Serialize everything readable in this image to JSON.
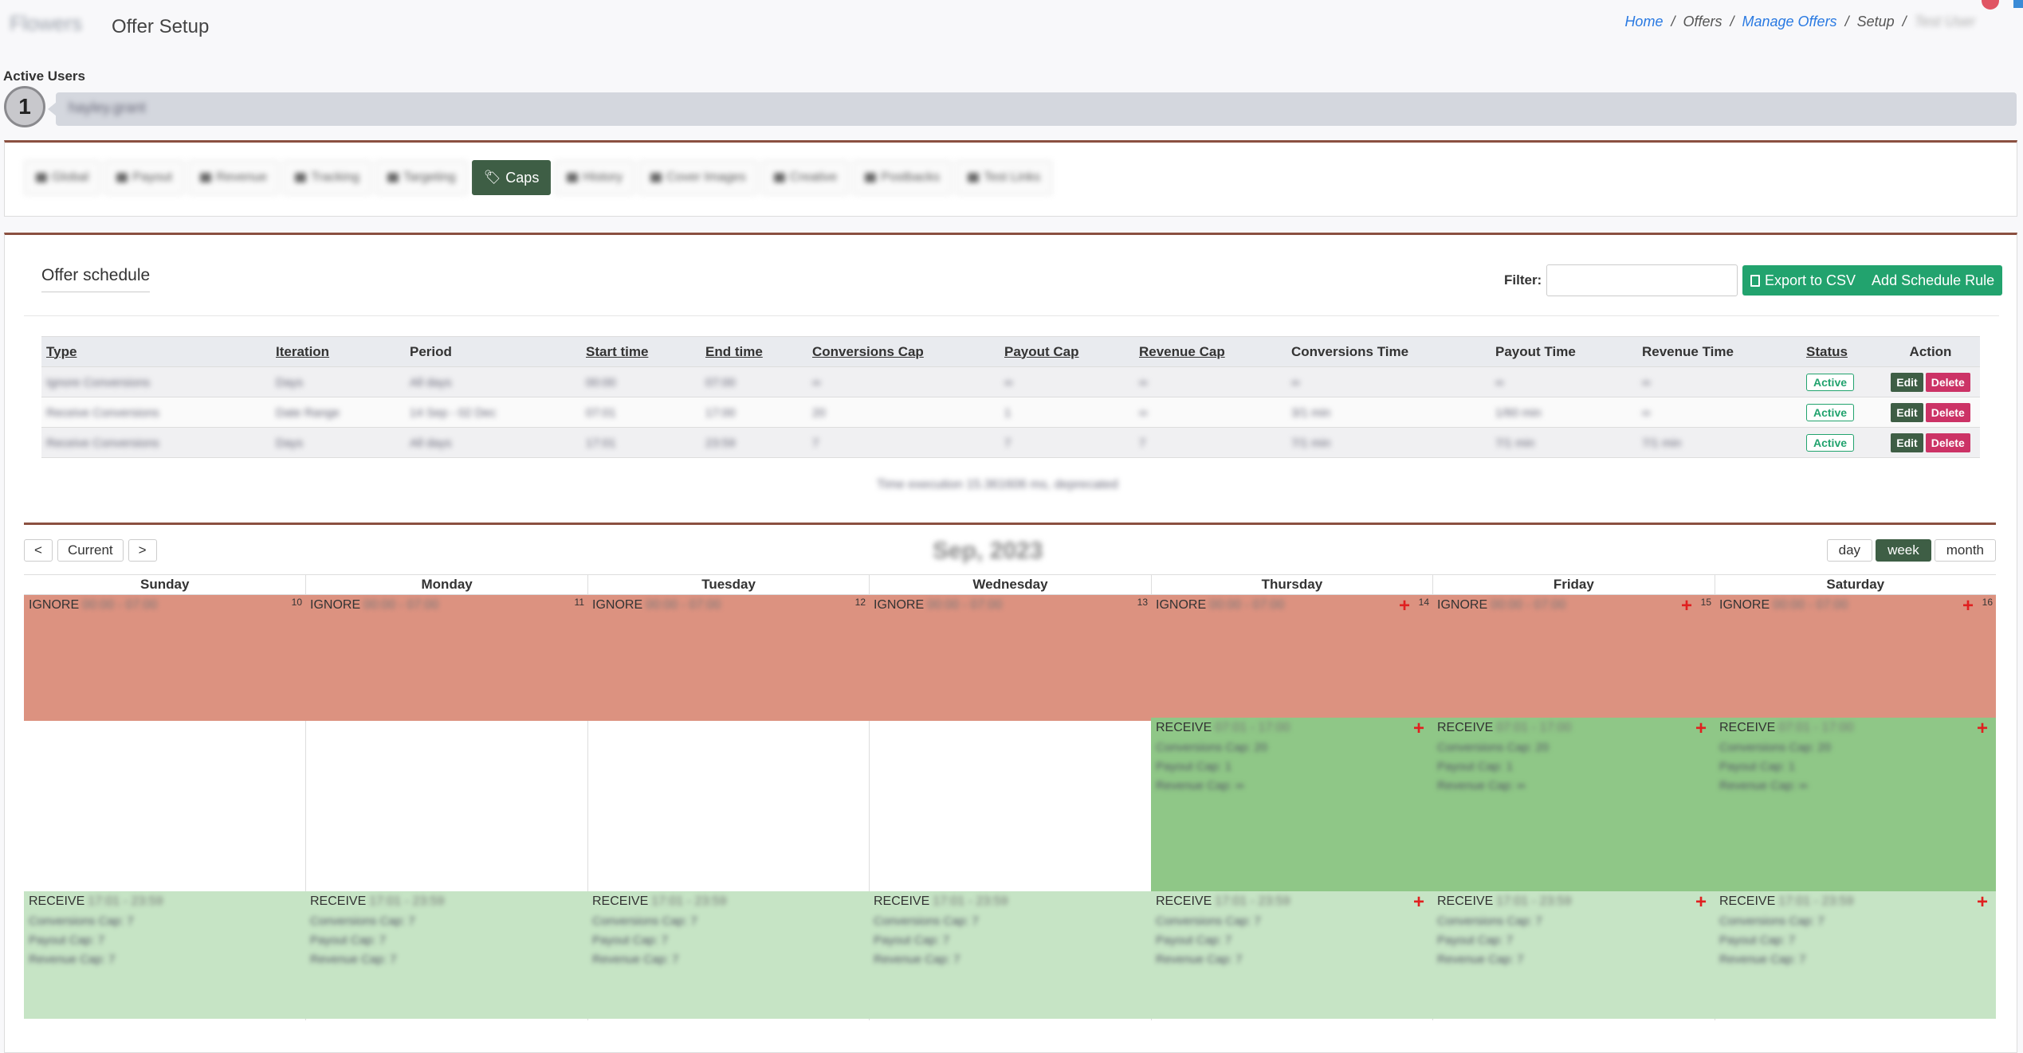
{
  "header": {
    "brand": "Flowers",
    "title": "Offer Setup",
    "breadcrumb": {
      "home": "Home",
      "offers": "Offers",
      "manage": "Manage Offers",
      "setup": "Setup",
      "sep": "/",
      "user": "Test User"
    }
  },
  "active_users": {
    "label": "Active Users",
    "count": "1",
    "name": "hayley.grant"
  },
  "tabs": [
    {
      "label": "Global",
      "active": false
    },
    {
      "label": "Payout",
      "active": false
    },
    {
      "label": "Revenue",
      "active": false
    },
    {
      "label": "Tracking",
      "active": false
    },
    {
      "label": "Targeting",
      "active": false
    },
    {
      "label": "Caps",
      "active": true
    },
    {
      "label": "History",
      "active": false
    },
    {
      "label": "Cover Images",
      "active": false
    },
    {
      "label": "Creative",
      "active": false
    },
    {
      "label": "Postbacks",
      "active": false
    },
    {
      "label": "Test Links",
      "active": false
    }
  ],
  "schedule": {
    "title": "Offer schedule",
    "filter_label": "Filter:",
    "filter_value": "",
    "export_label": "Export to CSV",
    "add_label": "Add Schedule Rule",
    "columns": [
      "Type",
      "Iteration",
      "Period",
      "Start time",
      "End time",
      "Conversions Cap",
      "Payout Cap",
      "Revenue Cap",
      "Conversions Time",
      "Payout Time",
      "Revenue Time",
      "Status",
      "Action"
    ],
    "rows": [
      {
        "type": "Ignore Conversions",
        "iteration": "Days",
        "period": "All days",
        "start": "00:00",
        "end": "07:00",
        "conv_cap": "∞",
        "payout_cap": "∞",
        "revenue_cap": "∞",
        "conv_time": "∞",
        "payout_time": "∞",
        "revenue_time": "∞",
        "status": "Active"
      },
      {
        "type": "Receive Conversions",
        "iteration": "Date Range",
        "period": "14 Sep - 02 Dec",
        "start": "07:01",
        "end": "17:00",
        "conv_cap": "20",
        "payout_cap": "1",
        "revenue_cap": "∞",
        "conv_time": "3/1 min",
        "payout_time": "1/60 min",
        "revenue_time": "∞",
        "status": "Active"
      },
      {
        "type": "Receive Conversions",
        "iteration": "Days",
        "period": "All days",
        "start": "17:01",
        "end": "23:59",
        "conv_cap": "7",
        "payout_cap": "7",
        "revenue_cap": "7",
        "conv_time": "7/1 min",
        "payout_time": "7/1 min",
        "revenue_time": "7/1 min",
        "status": "Active"
      }
    ],
    "edit_label": "Edit",
    "delete_label": "Delete",
    "exec_time": "Time execution 15.361606 ms, deprecated"
  },
  "calendar": {
    "prev": "<",
    "current": "Current",
    "next": ">",
    "title": "Sep, 2023",
    "views": [
      "day",
      "week",
      "month"
    ],
    "active_view": "week",
    "days": [
      "Sunday",
      "Monday",
      "Tuesday",
      "Wednesday",
      "Thursday",
      "Friday",
      "Saturday"
    ],
    "dates": [
      "10",
      "11",
      "12",
      "13",
      "14",
      "15",
      "16"
    ],
    "ignore_label": "IGNORE",
    "ignore_time": "00:00 - 07:00",
    "receive_label": "RECEIVE",
    "receive_mid_time": "07:01 - 17:00",
    "receive_mid_lines": [
      "Conversions Cap: 20",
      "Payout Cap: 1",
      "Revenue Cap: ∞"
    ],
    "receive_eve_time": "17:01 - 23:59",
    "receive_eve_lines": [
      "Conversions Cap: 7",
      "Payout Cap: 7",
      "Revenue Cap: 7"
    ],
    "add_symbol": "+",
    "colors": {
      "ignore": "#dc9280",
      "receive_mid": "#8fc787",
      "receive_eve": "#c6e4c5"
    }
  }
}
